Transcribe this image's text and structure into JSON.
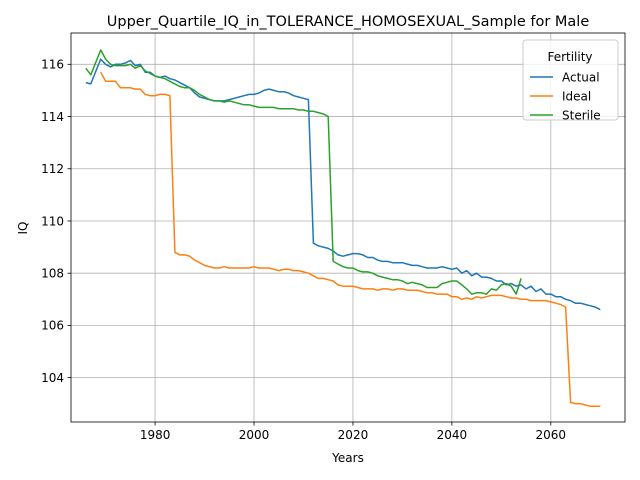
{
  "chart_data": {
    "type": "line",
    "title": "Upper_Quartile_IQ_in_TOLERANCE_HOMOSEXUAL_Sample for Male",
    "xlabel": "Years",
    "ylabel": "IQ",
    "xlim": [
      1963,
      2075
    ],
    "ylim": [
      102.3,
      117.2
    ],
    "xticks": [
      1980,
      2000,
      2020,
      2040,
      2060
    ],
    "yticks": [
      104,
      106,
      108,
      110,
      112,
      114,
      116
    ],
    "xtick_labels": [
      "1980",
      "2000",
      "2020",
      "2040",
      "2060"
    ],
    "ytick_labels": [
      "104",
      "106",
      "108",
      "110",
      "112",
      "114",
      "116"
    ],
    "grid": true,
    "legend": {
      "title": "Fertility",
      "placement": "top-right"
    },
    "series": [
      {
        "name": "Actual",
        "color": "#1f77b4",
        "points": [
          [
            1966,
            115.3
          ],
          [
            1967,
            115.25
          ],
          [
            1969,
            116.2
          ],
          [
            1970,
            116.0
          ],
          [
            1971,
            115.9
          ],
          [
            1972,
            116.0
          ],
          [
            1973,
            116.0
          ],
          [
            1974,
            116.05
          ],
          [
            1975,
            116.15
          ],
          [
            1976,
            115.95
          ],
          [
            1977,
            116.0
          ],
          [
            1978,
            115.7
          ],
          [
            1979,
            115.7
          ],
          [
            1980,
            115.55
          ],
          [
            1981,
            115.5
          ],
          [
            1982,
            115.55
          ],
          [
            1983,
            115.45
          ],
          [
            1984,
            115.4
          ],
          [
            1985,
            115.3
          ],
          [
            1986,
            115.2
          ],
          [
            1987,
            115.1
          ],
          [
            1988,
            114.9
          ],
          [
            1989,
            114.75
          ],
          [
            1990,
            114.7
          ],
          [
            1991,
            114.65
          ],
          [
            1992,
            114.6
          ],
          [
            1993,
            114.6
          ],
          [
            1994,
            114.6
          ],
          [
            1995,
            114.65
          ],
          [
            1996,
            114.7
          ],
          [
            1997,
            114.75
          ],
          [
            1998,
            114.8
          ],
          [
            1999,
            114.85
          ],
          [
            2000,
            114.85
          ],
          [
            2001,
            114.9
          ],
          [
            2002,
            115.0
          ],
          [
            2003,
            115.05
          ],
          [
            2004,
            115.0
          ],
          [
            2005,
            114.95
          ],
          [
            2006,
            114.95
          ],
          [
            2007,
            114.9
          ],
          [
            2008,
            114.8
          ],
          [
            2009,
            114.75
          ],
          [
            2010,
            114.7
          ],
          [
            2011,
            114.65
          ],
          [
            2012,
            109.15
          ],
          [
            2013,
            109.05
          ],
          [
            2014,
            109.0
          ],
          [
            2015,
            108.95
          ],
          [
            2016,
            108.85
          ],
          [
            2017,
            108.7
          ],
          [
            2018,
            108.65
          ],
          [
            2019,
            108.7
          ],
          [
            2020,
            108.75
          ],
          [
            2021,
            108.75
          ],
          [
            2022,
            108.7
          ],
          [
            2023,
            108.6
          ],
          [
            2024,
            108.6
          ],
          [
            2025,
            108.5
          ],
          [
            2026,
            108.45
          ],
          [
            2027,
            108.45
          ],
          [
            2028,
            108.4
          ],
          [
            2029,
            108.4
          ],
          [
            2030,
            108.4
          ],
          [
            2031,
            108.35
          ],
          [
            2032,
            108.3
          ],
          [
            2033,
            108.3
          ],
          [
            2034,
            108.25
          ],
          [
            2035,
            108.2
          ],
          [
            2036,
            108.2
          ],
          [
            2037,
            108.2
          ],
          [
            2038,
            108.25
          ],
          [
            2039,
            108.2
          ],
          [
            2040,
            108.15
          ],
          [
            2041,
            108.2
          ],
          [
            2042,
            108.0
          ],
          [
            2043,
            108.1
          ],
          [
            2044,
            107.9
          ],
          [
            2045,
            108.0
          ],
          [
            2046,
            107.85
          ],
          [
            2047,
            107.85
          ],
          [
            2048,
            107.8
          ],
          [
            2049,
            107.7
          ],
          [
            2050,
            107.7
          ],
          [
            2051,
            107.55
          ],
          [
            2052,
            107.6
          ],
          [
            2053,
            107.5
          ],
          [
            2054,
            107.55
          ],
          [
            2055,
            107.4
          ],
          [
            2056,
            107.5
          ],
          [
            2057,
            107.3
          ],
          [
            2058,
            107.4
          ],
          [
            2059,
            107.2
          ],
          [
            2060,
            107.2
          ],
          [
            2061,
            107.1
          ],
          [
            2062,
            107.1
          ],
          [
            2063,
            107.0
          ],
          [
            2064,
            106.95
          ],
          [
            2065,
            106.85
          ],
          [
            2066,
            106.85
          ],
          [
            2067,
            106.8
          ],
          [
            2068,
            106.75
          ],
          [
            2069,
            106.7
          ],
          [
            2070,
            106.6
          ]
        ]
      },
      {
        "name": "Ideal",
        "color": "#ff7f0e",
        "points": [
          [
            1969,
            115.7
          ],
          [
            1970,
            115.35
          ],
          [
            1971,
            115.35
          ],
          [
            1972,
            115.35
          ],
          [
            1973,
            115.1
          ],
          [
            1974,
            115.1
          ],
          [
            1975,
            115.1
          ],
          [
            1976,
            115.05
          ],
          [
            1977,
            115.05
          ],
          [
            1978,
            114.85
          ],
          [
            1979,
            114.8
          ],
          [
            1980,
            114.8
          ],
          [
            1981,
            114.85
          ],
          [
            1982,
            114.85
          ],
          [
            1983,
            114.8
          ],
          [
            1984,
            108.8
          ],
          [
            1985,
            108.7
          ],
          [
            1986,
            108.7
          ],
          [
            1987,
            108.65
          ],
          [
            1988,
            108.5
          ],
          [
            1989,
            108.4
          ],
          [
            1990,
            108.3
          ],
          [
            1991,
            108.25
          ],
          [
            1992,
            108.2
          ],
          [
            1993,
            108.2
          ],
          [
            1994,
            108.25
          ],
          [
            1995,
            108.2
          ],
          [
            1996,
            108.2
          ],
          [
            1997,
            108.2
          ],
          [
            1998,
            108.2
          ],
          [
            1999,
            108.2
          ],
          [
            2000,
            108.25
          ],
          [
            2001,
            108.2
          ],
          [
            2002,
            108.2
          ],
          [
            2003,
            108.2
          ],
          [
            2004,
            108.15
          ],
          [
            2005,
            108.1
          ],
          [
            2006,
            108.15
          ],
          [
            2007,
            108.15
          ],
          [
            2008,
            108.1
          ],
          [
            2009,
            108.1
          ],
          [
            2010,
            108.05
          ],
          [
            2011,
            108.0
          ],
          [
            2012,
            107.9
          ],
          [
            2013,
            107.8
          ],
          [
            2014,
            107.8
          ],
          [
            2015,
            107.75
          ],
          [
            2016,
            107.7
          ],
          [
            2017,
            107.55
          ],
          [
            2018,
            107.5
          ],
          [
            2019,
            107.5
          ],
          [
            2020,
            107.5
          ],
          [
            2021,
            107.45
          ],
          [
            2022,
            107.4
          ],
          [
            2023,
            107.4
          ],
          [
            2024,
            107.4
          ],
          [
            2025,
            107.35
          ],
          [
            2026,
            107.4
          ],
          [
            2027,
            107.4
          ],
          [
            2028,
            107.35
          ],
          [
            2029,
            107.4
          ],
          [
            2030,
            107.4
          ],
          [
            2031,
            107.35
          ],
          [
            2032,
            107.35
          ],
          [
            2033,
            107.35
          ],
          [
            2034,
            107.3
          ],
          [
            2035,
            107.25
          ],
          [
            2036,
            107.25
          ],
          [
            2037,
            107.2
          ],
          [
            2038,
            107.2
          ],
          [
            2039,
            107.2
          ],
          [
            2040,
            107.1
          ],
          [
            2041,
            107.1
          ],
          [
            2042,
            107.0
          ],
          [
            2043,
            107.05
          ],
          [
            2044,
            107.0
          ],
          [
            2045,
            107.1
          ],
          [
            2046,
            107.05
          ],
          [
            2047,
            107.1
          ],
          [
            2048,
            107.15
          ],
          [
            2049,
            107.15
          ],
          [
            2050,
            107.15
          ],
          [
            2051,
            107.1
          ],
          [
            2052,
            107.05
          ],
          [
            2053,
            107.05
          ],
          [
            2054,
            107.0
          ],
          [
            2055,
            107.0
          ],
          [
            2056,
            106.95
          ],
          [
            2057,
            106.95
          ],
          [
            2058,
            106.95
          ],
          [
            2059,
            106.95
          ],
          [
            2060,
            106.9
          ],
          [
            2061,
            106.85
          ],
          [
            2062,
            106.8
          ],
          [
            2063,
            106.7
          ],
          [
            2064,
            103.05
          ],
          [
            2065,
            103.0
          ],
          [
            2066,
            103.0
          ],
          [
            2067,
            102.95
          ],
          [
            2068,
            102.9
          ],
          [
            2069,
            102.9
          ],
          [
            2070,
            102.9
          ]
        ]
      },
      {
        "name": "Sterile",
        "color": "#2ca02c",
        "points": [
          [
            1966,
            115.85
          ],
          [
            1967,
            115.6
          ],
          [
            1969,
            116.55
          ],
          [
            1970,
            116.2
          ],
          [
            1971,
            116.0
          ],
          [
            1972,
            115.95
          ],
          [
            1973,
            115.95
          ],
          [
            1974,
            115.95
          ],
          [
            1975,
            116.0
          ],
          [
            1976,
            115.85
          ],
          [
            1977,
            115.95
          ],
          [
            1978,
            115.75
          ],
          [
            1979,
            115.65
          ],
          [
            1980,
            115.55
          ],
          [
            1981,
            115.5
          ],
          [
            1982,
            115.45
          ],
          [
            1983,
            115.35
          ],
          [
            1984,
            115.25
          ],
          [
            1985,
            115.15
          ],
          [
            1986,
            115.1
          ],
          [
            1987,
            115.1
          ],
          [
            1988,
            115.0
          ],
          [
            1989,
            114.85
          ],
          [
            1990,
            114.75
          ],
          [
            1991,
            114.65
          ],
          [
            1992,
            114.6
          ],
          [
            1993,
            114.6
          ],
          [
            1994,
            114.55
          ],
          [
            1995,
            114.6
          ],
          [
            1996,
            114.55
          ],
          [
            1997,
            114.5
          ],
          [
            1998,
            114.45
          ],
          [
            1999,
            114.45
          ],
          [
            2000,
            114.4
          ],
          [
            2001,
            114.35
          ],
          [
            2002,
            114.35
          ],
          [
            2003,
            114.35
          ],
          [
            2004,
            114.35
          ],
          [
            2005,
            114.3
          ],
          [
            2006,
            114.3
          ],
          [
            2007,
            114.3
          ],
          [
            2008,
            114.3
          ],
          [
            2009,
            114.25
          ],
          [
            2010,
            114.25
          ],
          [
            2011,
            114.2
          ],
          [
            2012,
            114.2
          ],
          [
            2013,
            114.15
          ],
          [
            2014,
            114.1
          ],
          [
            2015,
            114.0
          ],
          [
            2016,
            108.45
          ],
          [
            2017,
            108.35
          ],
          [
            2018,
            108.25
          ],
          [
            2019,
            108.2
          ],
          [
            2020,
            108.2
          ],
          [
            2021,
            108.1
          ],
          [
            2022,
            108.05
          ],
          [
            2023,
            108.05
          ],
          [
            2024,
            108.0
          ],
          [
            2025,
            107.9
          ],
          [
            2026,
            107.85
          ],
          [
            2027,
            107.8
          ],
          [
            2028,
            107.75
          ],
          [
            2029,
            107.75
          ],
          [
            2030,
            107.7
          ],
          [
            2031,
            107.6
          ],
          [
            2032,
            107.65
          ],
          [
            2033,
            107.6
          ],
          [
            2034,
            107.55
          ],
          [
            2035,
            107.45
          ],
          [
            2036,
            107.45
          ],
          [
            2037,
            107.45
          ],
          [
            2038,
            107.6
          ],
          [
            2039,
            107.65
          ],
          [
            2040,
            107.7
          ],
          [
            2041,
            107.7
          ],
          [
            2042,
            107.55
          ],
          [
            2043,
            107.4
          ],
          [
            2044,
            107.2
          ],
          [
            2045,
            107.25
          ],
          [
            2046,
            107.25
          ],
          [
            2047,
            107.2
          ],
          [
            2048,
            107.4
          ],
          [
            2049,
            107.35
          ],
          [
            2050,
            107.55
          ],
          [
            2051,
            107.6
          ],
          [
            2052,
            107.5
          ],
          [
            2053,
            107.2
          ],
          [
            2054,
            107.8
          ]
        ]
      }
    ]
  }
}
